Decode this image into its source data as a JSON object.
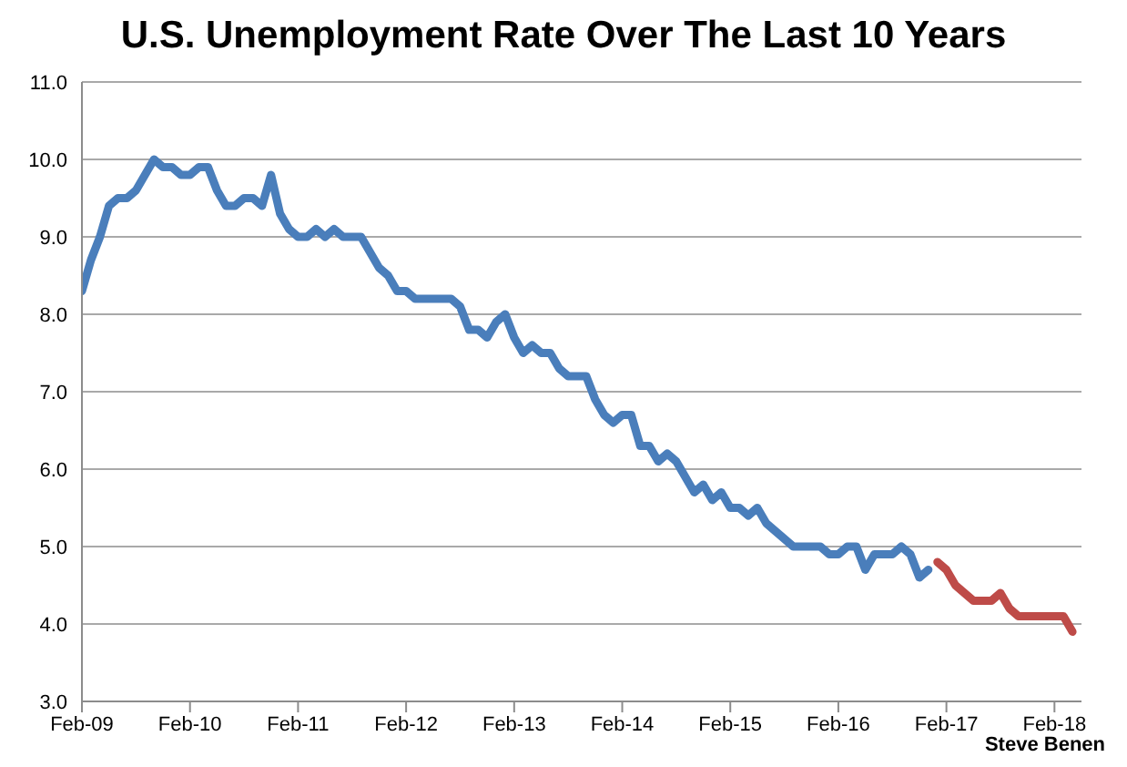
{
  "chart_data": {
    "type": "line",
    "title": "U.S. Unemployment Rate Over The Last 10 Years",
    "annotations": [
      "Steve Benen"
    ],
    "series": [
      {
        "color": "#4a7ebb",
        "x": [
          "2009-02",
          "2009-03",
          "2009-04",
          "2009-05",
          "2009-06",
          "2009-07",
          "2009-08",
          "2009-09",
          "2009-10",
          "2009-11",
          "2009-12",
          "2010-01",
          "2010-02",
          "2010-03",
          "2010-04",
          "2010-05",
          "2010-06",
          "2010-07",
          "2010-08",
          "2010-09",
          "2010-10",
          "2010-11",
          "2010-12",
          "2011-01",
          "2011-02",
          "2011-03",
          "2011-04",
          "2011-05",
          "2011-06",
          "2011-07",
          "2011-08",
          "2011-09",
          "2011-10",
          "2011-11",
          "2011-12",
          "2012-01",
          "2012-02",
          "2012-03",
          "2012-04",
          "2012-05",
          "2012-06",
          "2012-07",
          "2012-08",
          "2012-09",
          "2012-10",
          "2012-11",
          "2012-12",
          "2013-01",
          "2013-02",
          "2013-03",
          "2013-04",
          "2013-05",
          "2013-06",
          "2013-07",
          "2013-08",
          "2013-09",
          "2013-10",
          "2013-11",
          "2013-12",
          "2014-01",
          "2014-02",
          "2014-03",
          "2014-04",
          "2014-05",
          "2014-06",
          "2014-07",
          "2014-08",
          "2014-09",
          "2014-10",
          "2014-11",
          "2014-12",
          "2015-01",
          "2015-02",
          "2015-03",
          "2015-04",
          "2015-05",
          "2015-06",
          "2015-07",
          "2015-08",
          "2015-09",
          "2015-10",
          "2015-11",
          "2015-12",
          "2016-01",
          "2016-02",
          "2016-03",
          "2016-04",
          "2016-05",
          "2016-06",
          "2016-07",
          "2016-08",
          "2016-09",
          "2016-10",
          "2016-11",
          "2016-12"
        ],
        "values": [
          8.3,
          8.7,
          9.0,
          9.4,
          9.5,
          9.5,
          9.6,
          9.8,
          10.0,
          9.9,
          9.9,
          9.8,
          9.8,
          9.9,
          9.9,
          9.6,
          9.4,
          9.4,
          9.5,
          9.5,
          9.4,
          9.8,
          9.3,
          9.1,
          9.0,
          9.0,
          9.1,
          9.0,
          9.1,
          9.0,
          9.0,
          9.0,
          8.8,
          8.6,
          8.5,
          8.3,
          8.3,
          8.2,
          8.2,
          8.2,
          8.2,
          8.2,
          8.1,
          7.8,
          7.8,
          7.7,
          7.9,
          8.0,
          7.7,
          7.5,
          7.6,
          7.5,
          7.5,
          7.3,
          7.2,
          7.2,
          7.2,
          6.9,
          6.7,
          6.6,
          6.7,
          6.7,
          6.3,
          6.3,
          6.1,
          6.2,
          6.1,
          5.9,
          5.7,
          5.8,
          5.6,
          5.7,
          5.5,
          5.5,
          5.4,
          5.5,
          5.3,
          5.2,
          5.1,
          5.0,
          5.0,
          5.0,
          5.0,
          4.9,
          4.9,
          5.0,
          5.0,
          4.7,
          4.9,
          4.9,
          4.9,
          5.0,
          4.9,
          4.6,
          4.7
        ]
      },
      {
        "color": "#be4b48",
        "x": [
          "2017-01",
          "2017-02",
          "2017-03",
          "2017-04",
          "2017-05",
          "2017-06",
          "2017-07",
          "2017-08",
          "2017-09",
          "2017-10",
          "2017-11",
          "2017-12",
          "2018-01",
          "2018-02",
          "2018-03",
          "2018-04"
        ],
        "values": [
          4.8,
          4.7,
          4.5,
          4.4,
          4.3,
          4.3,
          4.3,
          4.4,
          4.2,
          4.1,
          4.1,
          4.1,
          4.1,
          4.1,
          4.1,
          3.9
        ]
      }
    ],
    "xlim": [
      "2009-02",
      "2018-05"
    ],
    "xticks": [
      {
        "value": "2009-02",
        "label": "Feb-09"
      },
      {
        "value": "2010-02",
        "label": "Feb-10"
      },
      {
        "value": "2011-02",
        "label": "Feb-11"
      },
      {
        "value": "2012-02",
        "label": "Feb-12"
      },
      {
        "value": "2013-02",
        "label": "Feb-13"
      },
      {
        "value": "2014-02",
        "label": "Feb-14"
      },
      {
        "value": "2015-02",
        "label": "Feb-15"
      },
      {
        "value": "2016-02",
        "label": "Feb-16"
      },
      {
        "value": "2017-02",
        "label": "Feb-17"
      },
      {
        "value": "2018-02",
        "label": "Feb-18"
      }
    ],
    "ylim": [
      3,
      11
    ],
    "yticks": [
      {
        "value": 3,
        "label": "3.0"
      },
      {
        "value": 4,
        "label": "4.0"
      },
      {
        "value": 5,
        "label": "5.0"
      },
      {
        "value": 6,
        "label": "6.0"
      },
      {
        "value": 7,
        "label": "7.0"
      },
      {
        "value": 8,
        "label": "8.0"
      },
      {
        "value": 9,
        "label": "9.0"
      },
      {
        "value": 10,
        "label": "10.0"
      },
      {
        "value": 11,
        "label": "11.0"
      }
    ],
    "grid": "y",
    "marker": "none",
    "line_style": "solid"
  }
}
